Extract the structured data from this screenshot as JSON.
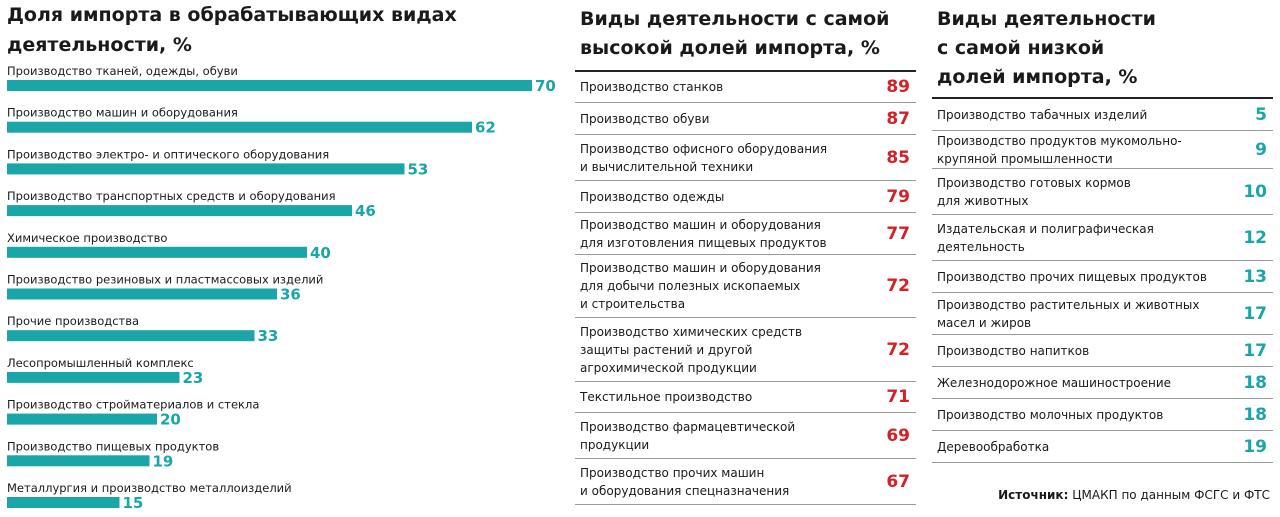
{
  "colors": {
    "bar": "#1aa5a8",
    "high_value": "#d42027",
    "low_value": "#1aa5a8",
    "text": "#1a1a1a"
  },
  "chart_data": {
    "type": "bar",
    "orientation": "horizontal",
    "title": "Доля импорта в обрабатывающих видах деятельности, %",
    "categories": [
      "Производство тканей, одежды, обуви",
      "Производство машин и оборудования",
      "Производство электро- и оптического оборудования",
      "Производство транспортных средств и оборудования",
      "Химическое производство",
      "Производство резиновых и пластмассовых изделий",
      "Прочие производства",
      "Лесопромышленный комплекс",
      "Производство стройматериалов и стекла",
      "Производство пищевых продуктов",
      "Металлургия и производство металлоизделий"
    ],
    "values": [
      70,
      62,
      53,
      46,
      40,
      36,
      33,
      23,
      20,
      19,
      15
    ],
    "xlim": [
      0,
      70
    ],
    "grid": false,
    "legend": "none",
    "data_labels": true
  },
  "chart_title_lines": [
    "Доля импорта в обрабатывающих видах",
    "деятельности, %"
  ],
  "high_table": {
    "title_lines": [
      "Виды деятельности с самой",
      "высокой долей импорта, %"
    ],
    "rows": [
      {
        "label": "Производство станков",
        "value": "89"
      },
      {
        "label": "Производство обуви",
        "value": "87"
      },
      {
        "label": "Производство офисного оборудования\nи вычислительной техники",
        "value": "85"
      },
      {
        "label": "Производство одежды",
        "value": "79"
      },
      {
        "label": "Производство машин и оборудования\nдля изготовления пищевых продуктов",
        "value": "77"
      },
      {
        "label": "Производство машин и оборудования\nдля добычи полезных ископаемых\nи строительства",
        "value": "72"
      },
      {
        "label": "Производство химических средств\nзащиты растений и другой\nагрохимической продукции",
        "value": "72"
      },
      {
        "label": "Текстильное производство",
        "value": "71"
      },
      {
        "label": "Производство фармацевтической\nпродукции",
        "value": "69"
      },
      {
        "label": "Производство прочих машин\nи оборудования спецназначения",
        "value": "67"
      }
    ]
  },
  "low_table": {
    "title_lines": [
      "Виды деятельности",
      "с самой низкой",
      "долей импорта, %"
    ],
    "rows": [
      {
        "label": "Производство табачных изделий",
        "value": "5"
      },
      {
        "label": "Производство продуктов мукомольно-\nкрупяной промышленности",
        "value": "9"
      },
      {
        "label": "Производство готовых кормов\nдля животных",
        "value": "10"
      },
      {
        "label": "Издательская и полиграфическая\nдеятельность",
        "value": "12"
      },
      {
        "label": "Производство прочих пищевых продуктов",
        "value": "13"
      },
      {
        "label": "Производство растительных и животных\nмасел и жиров",
        "value": "17"
      },
      {
        "label": "Производство напитков",
        "value": "17"
      },
      {
        "label": "Железнодорожное машиностроение",
        "value": "18"
      },
      {
        "label": "Производство молочных продуктов",
        "value": "18"
      },
      {
        "label": "Деревообработка",
        "value": "19"
      }
    ]
  },
  "source": {
    "label": "Источник:",
    "text": "ЦМАКП по данным ФСГС и ФТС"
  }
}
